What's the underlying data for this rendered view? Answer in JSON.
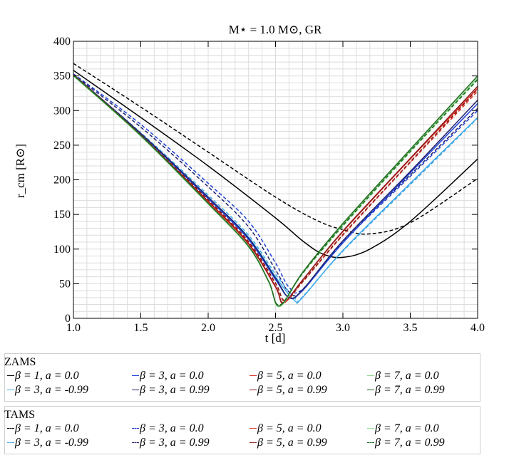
{
  "chart_data": {
    "type": "line",
    "title": "M⋆ = 1.0 M⊙, GR",
    "xlabel": "t [d]",
    "ylabel": "r_cm [R⊙]",
    "xlim": [
      1.0,
      4.0
    ],
    "ylim": [
      0,
      400
    ],
    "xticks": [
      "1.0",
      "1.5",
      "2.0",
      "2.5",
      "3.0",
      "3.5",
      "4.0"
    ],
    "yticks": [
      "0",
      "50",
      "100",
      "150",
      "200",
      "250",
      "300",
      "350",
      "400"
    ],
    "grid": true,
    "legend_placement": "below plot, two boxed groups (ZAMS, TAMS), four columns",
    "colors": {
      "beta1": "#000000",
      "beta3_a0": "#1a3fd8",
      "beta3_neg": "#3fa9e8",
      "beta3_pos": "#22226e",
      "beta5_a0": "#e03020",
      "beta5_pos": "#8b1a1a",
      "beta7_a0": "#8ad88a",
      "beta7_pos": "#1e6b1e"
    },
    "legend_groups": [
      {
        "title": "ZAMS",
        "dash": "solid",
        "entries": [
          {
            "label": "β = 1, a = 0.0",
            "color": "#000000"
          },
          {
            "label": "β = 3, a = 0.0",
            "color": "#1a3fd8"
          },
          {
            "label": "β = 5, a = 0.0",
            "color": "#e03020"
          },
          {
            "label": "β = 7, a = 0.0",
            "color": "#8ad88a"
          },
          {
            "label": "β = 3, a = -0.99",
            "color": "#3fa9e8"
          },
          {
            "label": "β = 3, a = 0.99",
            "color": "#22226e"
          },
          {
            "label": "β = 5, a = 0.99",
            "color": "#8b1a1a"
          },
          {
            "label": "β = 7, a = 0.99",
            "color": "#1e6b1e"
          }
        ]
      },
      {
        "title": "TAMS",
        "dash": "dashed",
        "entries": [
          {
            "label": "β = 1, a = 0.0",
            "color": "#000000"
          },
          {
            "label": "β = 3, a = 0.0",
            "color": "#1a3fd8"
          },
          {
            "label": "β = 5, a = 0.0",
            "color": "#e03020"
          },
          {
            "label": "β = 7, a = 0.0",
            "color": "#8ad88a"
          },
          {
            "label": "β = 3, a = -0.99",
            "color": "#3fa9e8"
          },
          {
            "label": "β = 3, a = 0.99",
            "color": "#22226e"
          },
          {
            "label": "β = 5, a = 0.99",
            "color": "#8b1a1a"
          },
          {
            "label": "β = 7, a = 0.99",
            "color": "#1e6b1e"
          }
        ]
      }
    ],
    "series": [
      {
        "group": "ZAMS",
        "color": "#000000",
        "dash": "solid",
        "x": [
          1.0,
          1.5,
          2.0,
          2.5,
          2.7,
          2.85,
          3.0,
          3.2,
          3.5,
          4.0
        ],
        "y": [
          358,
          290,
          220,
          145,
          112,
          93,
          88,
          100,
          140,
          230
        ]
      },
      {
        "group": "TAMS",
        "color": "#000000",
        "dash": "dashed",
        "x": [
          1.0,
          1.5,
          2.0,
          2.5,
          2.8,
          3.0,
          3.2,
          3.5,
          4.0
        ],
        "y": [
          368,
          305,
          240,
          175,
          142,
          128,
          122,
          138,
          202
        ]
      },
      {
        "group": "TAMS",
        "color": "#1a3fd8",
        "dash": "dashed",
        "x": [
          1.0,
          1.5,
          2.0,
          2.3,
          2.5,
          2.6,
          2.7,
          3.0,
          3.5,
          4.0
        ],
        "y": [
          353,
          280,
          195,
          140,
          80,
          45,
          42,
          110,
          205,
          300
        ]
      },
      {
        "group": "TAMS",
        "color": "#22226e",
        "dash": "dashed",
        "x": [
          1.0,
          1.5,
          2.0,
          2.3,
          2.5,
          2.6,
          2.7,
          3.0,
          3.5,
          4.0
        ],
        "y": [
          352,
          276,
          190,
          132,
          70,
          38,
          40,
          112,
          207,
          303
        ]
      },
      {
        "group": "ZAMS",
        "color": "#3fa9e8",
        "dash": "solid",
        "x": [
          1.0,
          1.5,
          2.0,
          2.3,
          2.5,
          2.64,
          2.7,
          3.0,
          3.5,
          4.0
        ],
        "y": [
          350,
          266,
          175,
          117,
          60,
          26,
          30,
          98,
          195,
          290
        ]
      },
      {
        "group": "TAMS",
        "color": "#3fa9e8",
        "dash": "dashed",
        "x": [
          1.0,
          1.5,
          2.0,
          2.3,
          2.5,
          2.65,
          2.7,
          3.0,
          3.5,
          4.0
        ],
        "y": [
          351,
          268,
          178,
          120,
          64,
          28,
          31,
          97,
          193,
          289
        ]
      },
      {
        "group": "ZAMS",
        "color": "#1a3fd8",
        "dash": "solid",
        "x": [
          1.0,
          1.5,
          2.0,
          2.3,
          2.5,
          2.6,
          2.7,
          3.0,
          3.5,
          4.0
        ],
        "y": [
          351,
          266,
          173,
          114,
          56,
          30,
          40,
          109,
          210,
          310
        ]
      },
      {
        "group": "ZAMS",
        "color": "#22226e",
        "dash": "solid",
        "x": [
          1.0,
          1.5,
          2.0,
          2.3,
          2.5,
          2.6,
          2.7,
          3.0,
          3.5,
          4.0
        ],
        "y": [
          352,
          267,
          175,
          116,
          58,
          30,
          41,
          112,
          212,
          315
        ]
      },
      {
        "group": "ZAMS",
        "color": "#e03020",
        "dash": "solid",
        "x": [
          1.0,
          1.5,
          2.0,
          2.3,
          2.5,
          2.56,
          2.7,
          3.0,
          3.5,
          4.0
        ],
        "y": [
          351,
          264,
          168,
          107,
          45,
          22,
          55,
          125,
          230,
          332
        ]
      },
      {
        "group": "ZAMS",
        "color": "#8b1a1a",
        "dash": "solid",
        "x": [
          1.0,
          1.5,
          2.0,
          2.3,
          2.5,
          2.56,
          2.7,
          3.0,
          3.5,
          4.0
        ],
        "y": [
          351,
          264,
          169,
          108,
          46,
          23,
          55,
          126,
          231,
          335
        ]
      },
      {
        "group": "TAMS",
        "color": "#e03020",
        "dash": "dashed",
        "x": [
          1.0,
          1.5,
          2.0,
          2.3,
          2.5,
          2.57,
          2.7,
          3.0,
          3.5,
          4.0
        ],
        "y": [
          352,
          265,
          170,
          110,
          50,
          25,
          52,
          120,
          225,
          328
        ]
      },
      {
        "group": "TAMS",
        "color": "#8b1a1a",
        "dash": "dashed",
        "x": [
          1.0,
          1.5,
          2.0,
          2.3,
          2.5,
          2.57,
          2.7,
          3.0,
          3.5,
          4.0
        ],
        "y": [
          352,
          265,
          171,
          111,
          51,
          26,
          53,
          121,
          226,
          331
        ]
      },
      {
        "group": "ZAMS",
        "color": "#8ad88a",
        "dash": "solid",
        "x": [
          1.0,
          1.5,
          2.0,
          2.3,
          2.45,
          2.53,
          2.7,
          3.0,
          3.5,
          4.0
        ],
        "y": [
          350,
          263,
          165,
          103,
          52,
          17,
          65,
          135,
          242,
          347
        ]
      },
      {
        "group": "ZAMS",
        "color": "#1e6b1e",
        "dash": "solid",
        "x": [
          1.0,
          1.5,
          2.0,
          2.3,
          2.45,
          2.53,
          2.7,
          3.0,
          3.5,
          4.0
        ],
        "y": [
          351,
          264,
          166,
          104,
          53,
          18,
          66,
          137,
          244,
          350
        ]
      },
      {
        "group": "TAMS",
        "color": "#8ad88a",
        "dash": "dashed",
        "x": [
          1.0,
          1.5,
          2.0,
          2.3,
          2.45,
          2.53,
          2.7,
          3.0,
          3.5,
          4.0
        ],
        "y": [
          351,
          264,
          166,
          104,
          53,
          19,
          64,
          133,
          240,
          344
        ]
      },
      {
        "group": "TAMS",
        "color": "#1e6b1e",
        "dash": "dashed",
        "x": [
          1.0,
          1.5,
          2.0,
          2.3,
          2.45,
          2.53,
          2.7,
          3.0,
          3.5,
          4.0
        ],
        "y": [
          351,
          264,
          166,
          104,
          53,
          19,
          65,
          134,
          241,
          345
        ]
      }
    ]
  }
}
